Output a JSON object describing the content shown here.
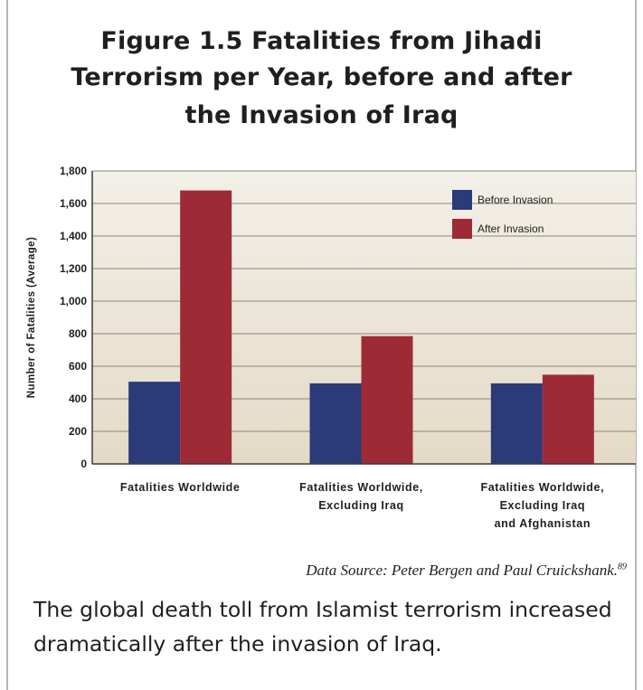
{
  "title_lines": [
    "Figure 1.5 Fatalities from Jihadi",
    "Terrorism per Year, before and after",
    "the Invasion of Iraq"
  ],
  "source": "Data Source: Peter Bergen and Paul Cruickshank.",
  "source_ref": "89",
  "caption_lines": [
    "The global death toll from Islamist terrorism increased",
    "dramatically after the invasion of Iraq."
  ],
  "chart_data": {
    "type": "bar",
    "title": "Figure 1.5 Fatalities from Jihadi Terrorism per Year, before and after the Invasion of Iraq",
    "xlabel": "",
    "ylabel": "Number of Fatalities (Average)",
    "categories": [
      [
        "Fatalities Worldwide"
      ],
      [
        "Fatalities Worldwide,",
        "Excluding Iraq"
      ],
      [
        "Fatalities Worldwide,",
        "Excluding Iraq",
        "and Afghanistan"
      ]
    ],
    "series": [
      {
        "name": "Before Invasion",
        "color": "#2b3a78",
        "values": [
          505,
          495,
          495
        ]
      },
      {
        "name": "After Invasion",
        "color": "#9e2a36",
        "values": [
          1680,
          785,
          548
        ]
      }
    ],
    "ylim": [
      0,
      1800
    ],
    "yticks": [
      0,
      200,
      400,
      600,
      800,
      1000,
      1200,
      1400,
      1600,
      1800
    ],
    "ytick_labels": [
      "0",
      "200",
      "400",
      "600",
      "800",
      "1,000",
      "1,200",
      "1,400",
      "1,600",
      "1,800"
    ],
    "grid": true,
    "legend_position": "top-right",
    "plot_background": [
      "#f3f0e9",
      "#e4dac6"
    ],
    "grid_color": "#8e8676"
  }
}
